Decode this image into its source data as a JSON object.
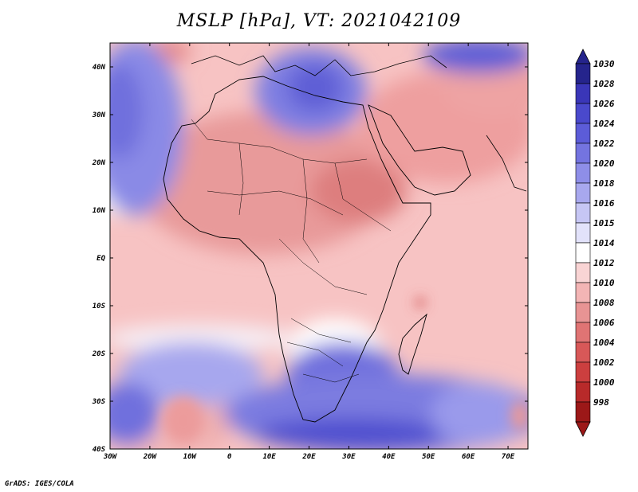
{
  "title": "MSLP [hPa], VT: 2021042109",
  "credit": "GrADS: IGES/COLA",
  "map": {
    "lat_labels": [
      "40N",
      "30N",
      "20N",
      "10N",
      "EQ",
      "10S",
      "20S",
      "30S",
      "40S"
    ],
    "lon_labels": [
      "30W",
      "20W",
      "10W",
      "0",
      "10E",
      "20E",
      "30E",
      "40E",
      "50E",
      "60E",
      "70E"
    ],
    "extent": {
      "lon_min": -30,
      "lon_max": 75,
      "lat_min": -40,
      "lat_max": 45
    }
  },
  "colorbar": {
    "labels": [
      "1030",
      "1028",
      "1026",
      "1024",
      "1022",
      "1020",
      "1018",
      "1016",
      "1015",
      "1014",
      "1012",
      "1010",
      "1008",
      "1006",
      "1004",
      "1002",
      "1000",
      "998"
    ],
    "colors": [
      "#25248c",
      "#3a36b8",
      "#4a49cc",
      "#5c5cd8",
      "#7474e0",
      "#8e8ee8",
      "#a8a8ee",
      "#c6c6f4",
      "#e2e2fa",
      "#ffffff",
      "#f9d4d4",
      "#f3b5b5",
      "#e89494",
      "#e07474",
      "#d85858",
      "#cc3f3f",
      "#b82a2a",
      "#9c1818"
    ],
    "top_color": "#25248c",
    "bottom_color": "#9c1818"
  }
}
